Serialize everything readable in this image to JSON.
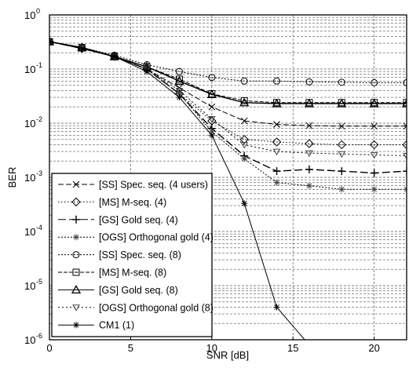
{
  "chart_data": {
    "type": "line",
    "title": "",
    "xlabel": "SNR [dB]",
    "ylabel": "BER",
    "xlim": [
      0,
      22
    ],
    "ylim": [
      1e-06,
      1
    ],
    "yscale": "log",
    "grid": true,
    "legend_position": "bottom-left",
    "x_ticks": [
      {
        "value": 0,
        "label": "0"
      },
      {
        "value": 5,
        "label": "5"
      },
      {
        "value": 10,
        "label": "10"
      },
      {
        "value": 15,
        "label": "15"
      },
      {
        "value": 20,
        "label": "20"
      }
    ],
    "y_ticks": [
      {
        "value": 1,
        "base": "10",
        "exp": "0"
      },
      {
        "value": 0.1,
        "base": "10",
        "exp": "-1"
      },
      {
        "value": 0.01,
        "base": "10",
        "exp": "-2"
      },
      {
        "value": 0.001,
        "base": "10",
        "exp": "-3"
      },
      {
        "value": 0.0001,
        "base": "10",
        "exp": "-4"
      },
      {
        "value": 1e-05,
        "base": "10",
        "exp": "-5"
      },
      {
        "value": 1e-06,
        "base": "10",
        "exp": "-6"
      }
    ],
    "x": [
      0,
      2,
      4,
      6,
      8,
      10,
      12,
      14,
      16,
      18,
      20,
      22
    ],
    "series": [
      {
        "name": "[SS] Spec. seq. (4 users)",
        "marker": "x",
        "dash": "7,3",
        "values": [
          0.32,
          0.24,
          0.17,
          0.1,
          0.045,
          0.02,
          0.011,
          0.0095,
          0.009,
          0.0088,
          0.0088,
          0.0088
        ]
      },
      {
        "name": "[MS] M-seq. (4)",
        "marker": "diamond",
        "dash": "1.5,2.5",
        "values": [
          0.32,
          0.24,
          0.17,
          0.1,
          0.035,
          0.011,
          0.005,
          0.0045,
          0.0042,
          0.004,
          0.004,
          0.004
        ]
      },
      {
        "name": "[GS] Gold seq. (4)",
        "marker": "plus",
        "dash": "10,4",
        "values": [
          0.32,
          0.24,
          0.17,
          0.1,
          0.035,
          0.008,
          0.0025,
          0.0013,
          0.0014,
          0.0013,
          0.0012,
          0.0013
        ]
      },
      {
        "name": "[OGS] Orthogonal gold (4)",
        "marker": "star",
        "dash": "2,2",
        "values": [
          0.32,
          0.24,
          0.17,
          0.1,
          0.035,
          0.007,
          0.0022,
          0.0008,
          0.0007,
          0.0006,
          0.0006,
          0.0006
        ]
      },
      {
        "name": "[SS] Spec. seq. (8)",
        "marker": "circle",
        "dash": "2,2",
        "values": [
          0.32,
          0.25,
          0.18,
          0.12,
          0.09,
          0.07,
          0.06,
          0.06,
          0.058,
          0.057,
          0.056,
          0.056
        ]
      },
      {
        "name": "[MS] M-seq. (8)",
        "marker": "square",
        "dash": "5,2",
        "values": [
          0.32,
          0.25,
          0.17,
          0.11,
          0.065,
          0.035,
          0.026,
          0.024,
          0.024,
          0.024,
          0.024,
          0.024
        ]
      },
      {
        "name": "[GS] Gold seq. (8)",
        "marker": "triangle",
        "dash": "",
        "values": [
          0.32,
          0.25,
          0.17,
          0.11,
          0.06,
          0.034,
          0.024,
          0.023,
          0.023,
          0.023,
          0.023,
          0.023
        ]
      },
      {
        "name": "[OGS] Orthogonal gold (8)",
        "marker": "tri-down",
        "dash": "2,3",
        "values": [
          0.32,
          0.25,
          0.17,
          0.1,
          0.04,
          0.012,
          0.004,
          0.003,
          0.0028,
          0.0027,
          0.0026,
          0.0025
        ]
      },
      {
        "name": "CM1 (1)",
        "marker": "asterisk",
        "dash": "",
        "values": [
          0.32,
          0.24,
          0.17,
          0.09,
          0.03,
          0.006,
          0.00033,
          4e-06,
          8e-07,
          null,
          null,
          null
        ]
      }
    ]
  }
}
